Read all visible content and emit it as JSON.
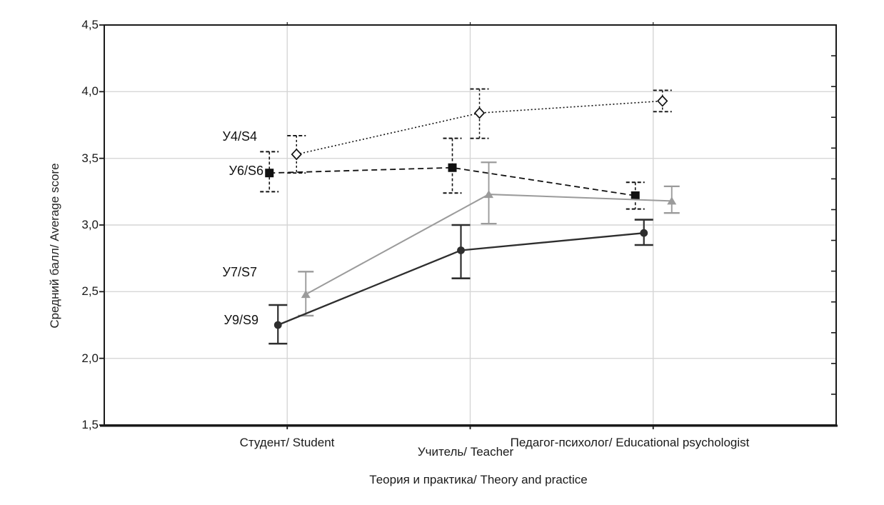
{
  "figure": {
    "background": "#ffffff"
  },
  "chart_data": {
    "type": "line",
    "title": "",
    "ylabel": "Средний балл/ Average score",
    "xlabel": "Теория и практика/ Theory and practice",
    "ylim": [
      1.5,
      4.5
    ],
    "grid": true,
    "legend_position": "inline-labels-left-of-first-point",
    "yticks": [
      {
        "value": 4.5,
        "label": "4,5"
      },
      {
        "value": 4.0,
        "label": "4,0"
      },
      {
        "value": 3.5,
        "label": "3,5"
      },
      {
        "value": 3.0,
        "label": "3,0"
      },
      {
        "value": 2.5,
        "label": "2,5"
      },
      {
        "value": 2.0,
        "label": "2,0"
      },
      {
        "value": 1.5,
        "label": "1,5"
      }
    ],
    "categories": [
      {
        "label": "Студент/ Student"
      },
      {
        "label": "Учитель/ Teacher"
      },
      {
        "label": "Педагог-психолог/ Educational psychologist"
      }
    ],
    "series": [
      {
        "name": "У4/S4",
        "marker": "open-diamond",
        "line_style": "dotted",
        "color": "#111111",
        "values": [
          3.53,
          3.84,
          3.93
        ],
        "ci_low": [
          3.39,
          3.65,
          3.85
        ],
        "ci_high": [
          3.67,
          4.02,
          4.01
        ]
      },
      {
        "name": "У6/S6",
        "marker": "filled-square",
        "line_style": "dashed",
        "color": "#111111",
        "values": [
          3.39,
          3.43,
          3.22
        ],
        "ci_low": [
          3.25,
          3.24,
          3.12
        ],
        "ci_high": [
          3.55,
          3.65,
          3.32
        ]
      },
      {
        "name": "У7/S7",
        "marker": "filled-triangle",
        "line_style": "solid",
        "color": "#9b9b9b",
        "values": [
          2.48,
          3.23,
          3.18
        ],
        "ci_low": [
          2.32,
          3.01,
          3.09
        ],
        "ci_high": [
          2.65,
          3.47,
          3.29
        ]
      },
      {
        "name": "У9/S9",
        "marker": "filled-circle",
        "line_style": "solid",
        "color": "#2e2e2e",
        "values": [
          2.25,
          2.81,
          2.94
        ],
        "ci_low": [
          2.11,
          2.6,
          2.85
        ],
        "ci_high": [
          2.4,
          3.0,
          3.04
        ]
      }
    ],
    "colors": {
      "gridline": "#d6d6d6",
      "axis": "#1a1a1a",
      "text": "#1a1a1a",
      "plot_background": "#ffffff"
    },
    "axes_style": {
      "left_major_ticks": true,
      "bottom_category_ticks": true,
      "right_minor_tick_count": 12,
      "error_bars": "95% CI whiskers with caps"
    }
  }
}
